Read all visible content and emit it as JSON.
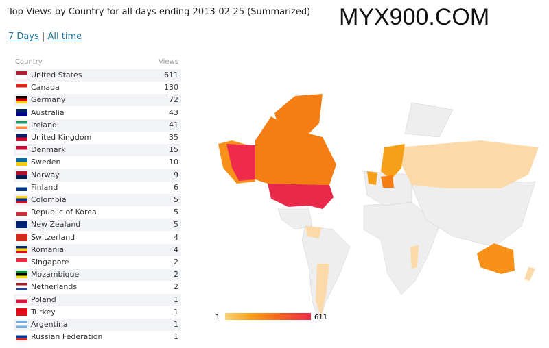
{
  "header": {
    "title": "Top Views by Country for all days ending 2013-02-25 (Summarized)",
    "watermark": "MYX900.COM"
  },
  "links": [
    "7 Days",
    "All time"
  ],
  "separator": "|",
  "table": {
    "headers": [
      "Country",
      "Views"
    ],
    "rows": [
      [
        "United States",
        611
      ],
      [
        "Canada",
        130
      ],
      [
        "Germany",
        72
      ],
      [
        "Australia",
        43
      ],
      [
        "Ireland",
        41
      ],
      [
        "United Kingdom",
        35
      ],
      [
        "Denmark",
        15
      ],
      [
        "Sweden",
        10
      ],
      [
        "Norway",
        9
      ],
      [
        "Finland",
        6
      ],
      [
        "Colombia",
        5
      ],
      [
        "Republic of Korea",
        5
      ],
      [
        "New Zealand",
        5
      ],
      [
        "Switzerland",
        4
      ],
      [
        "Romania",
        4
      ],
      [
        "Singapore",
        2
      ],
      [
        "Mozambique",
        2
      ],
      [
        "Netherlands",
        2
      ],
      [
        "Poland",
        1
      ],
      [
        "Turkey",
        1
      ],
      [
        "Argentina",
        1
      ],
      [
        "Russian Federation",
        1
      ]
    ]
  },
  "legend": {
    "min": 1,
    "max": 611
  }
}
